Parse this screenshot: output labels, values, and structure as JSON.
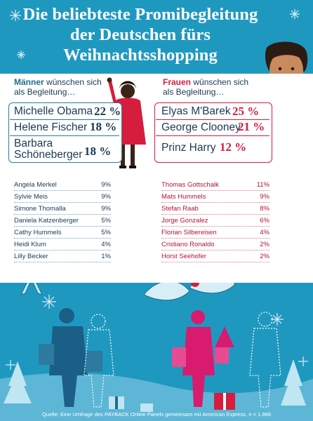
{
  "colors": {
    "background": "#1f98c0",
    "men_accent": "#1f7fa1",
    "women_accent": "#d61d3d"
  },
  "title_lines": [
    "Die beliebteste Promibegleitung",
    "der Deutschen fürs",
    "Weihnachtsshopping"
  ],
  "men": {
    "heading_normal": "Männer",
    "heading_rest": " wünschen sich",
    "heading_line2": "als Begleitung…"
  },
  "women": {
    "heading_normal": "Frauen",
    "heading_rest": " wünschen sich",
    "heading_line2": "als Begleitung…"
  },
  "chart_data": [
    {
      "type": "table",
      "series": "men",
      "top": [
        {
          "name": "Michelle Obama",
          "value": 22
        },
        {
          "name": "Helene Fischer",
          "value": 18
        },
        {
          "name_lines": [
            "Barbara",
            "Schöneberger"
          ],
          "value": 18
        }
      ],
      "rest": [
        {
          "name": "Angela Merkel",
          "value": 9
        },
        {
          "name": "Sylvie Meis",
          "value": 9
        },
        {
          "name": "Simone Thomalla",
          "value": 9
        },
        {
          "name": "Daniela Katzenberger",
          "value": 5
        },
        {
          "name": "Cathy Hummels",
          "value": 5
        },
        {
          "name": "Heidi Klum",
          "value": 4
        },
        {
          "name": "Lilly Becker",
          "value": 1
        }
      ],
      "unit": "%"
    },
    {
      "type": "table",
      "series": "women",
      "top": [
        {
          "name": "Elyas M'Barek",
          "value": 25
        },
        {
          "name": "George Clooney",
          "value": 21
        },
        {
          "name": "Prinz Harry",
          "value": 12
        }
      ],
      "rest": [
        {
          "name": "Thomas Gottschalk",
          "value": 11
        },
        {
          "name": "Mats Hummels",
          "value": 9
        },
        {
          "name": "Stefan Raab",
          "value": 8
        },
        {
          "name": "Jorge Gonzalez",
          "value": 6
        },
        {
          "name": "Florian Silbereisen",
          "value": 4
        },
        {
          "name": "Cristiano Ronaldo",
          "value": 2
        },
        {
          "name": "Horst Seehofer",
          "value": 2
        }
      ],
      "unit": "%"
    }
  ],
  "source": "Quelle: Eine Umfrage des PAYBACK Online Panels gemeinsam mit American Express, n = 1.988",
  "icons": [
    "snowflake-icon",
    "bow-icon",
    "holly-icon",
    "christmas-ball-icon",
    "gift-icon",
    "christmas-tree-icon",
    "shopper-silhouette-icon"
  ]
}
